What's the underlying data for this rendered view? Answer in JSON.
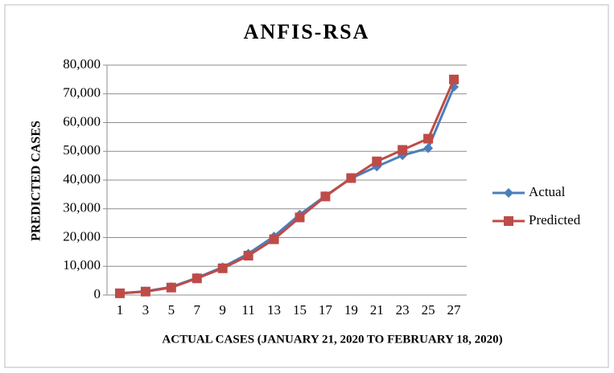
{
  "chart_data": {
    "type": "line",
    "title": "ANFIS-RSA",
    "x_label": "ACTUAL CASES (JANUARY 21,  2020 TO FEBRUARY 18,  2020)",
    "y_label": "PREDICTED CASES",
    "categories": [
      "1",
      "3",
      "5",
      "7",
      "9",
      "11",
      "13",
      "15",
      "17",
      "19",
      "21",
      "23",
      "25",
      "27"
    ],
    "series": [
      {
        "name": "Actual",
        "color": "#4a7ebb",
        "marker": "diamond",
        "values": [
          600,
          1300,
          2800,
          6000,
          9700,
          14400,
          20400,
          28000,
          34500,
          40600,
          44700,
          48600,
          51100,
          72400
        ]
      },
      {
        "name": "Predicted",
        "color": "#be4b48",
        "marker": "square",
        "values": [
          600,
          1200,
          2600,
          5800,
          9300,
          13700,
          19400,
          27000,
          34300,
          40700,
          46500,
          50500,
          54400,
          75000
        ]
      }
    ],
    "ylim": [
      0,
      80000
    ],
    "yticks": [
      0,
      {
        "value": 10000,
        "label": "10,000"
      },
      {
        "value": 20000,
        "label": "20,000"
      },
      {
        "value": 30000,
        "label": "30,000"
      },
      {
        "value": 40000,
        "label": "40,000"
      },
      {
        "value": 50000,
        "label": "50,000"
      },
      {
        "value": 60000,
        "label": "60,000"
      },
      {
        "value": 70000,
        "label": "70,000"
      },
      {
        "value": 80000,
        "label": "80,000"
      }
    ],
    "grid": true,
    "legend": "right"
  }
}
